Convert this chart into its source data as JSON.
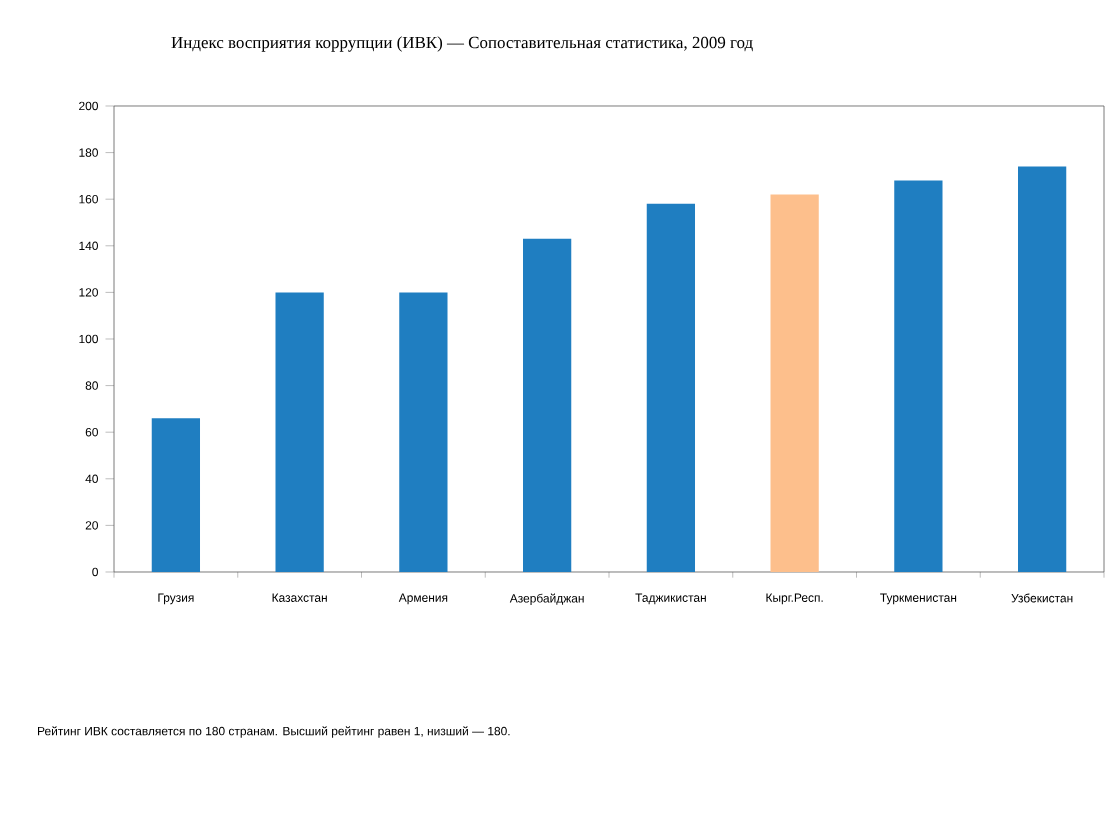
{
  "chart_data": {
    "type": "bar",
    "title": "Индекс восприятия коррупции (ИВК) — Сопоставительная статистика, 2009 год",
    "categories": [
      "Грузия",
      "Казахстан",
      "Армения",
      "Азербайджан",
      "Таджикистан",
      "Кырг.Респ.",
      "Туркменистан",
      "Узбекистан"
    ],
    "values": [
      66,
      120,
      120,
      143,
      158,
      162,
      168,
      174
    ],
    "colors": [
      "#1f7ec1",
      "#1f7ec1",
      "#1f7ec1",
      "#1f7ec1",
      "#1f7ec1",
      "#fdbf8c",
      "#1f7ec1",
      "#1f7ec1"
    ],
    "ylim": [
      0,
      200
    ],
    "yticks": [
      0,
      20,
      40,
      60,
      80,
      100,
      120,
      140,
      160,
      180,
      200
    ],
    "grid": false,
    "annotations": [
      "Рейтинг ИВК составляется по 180 странам. Высший рейтинг равен 1, низший — 180."
    ]
  }
}
